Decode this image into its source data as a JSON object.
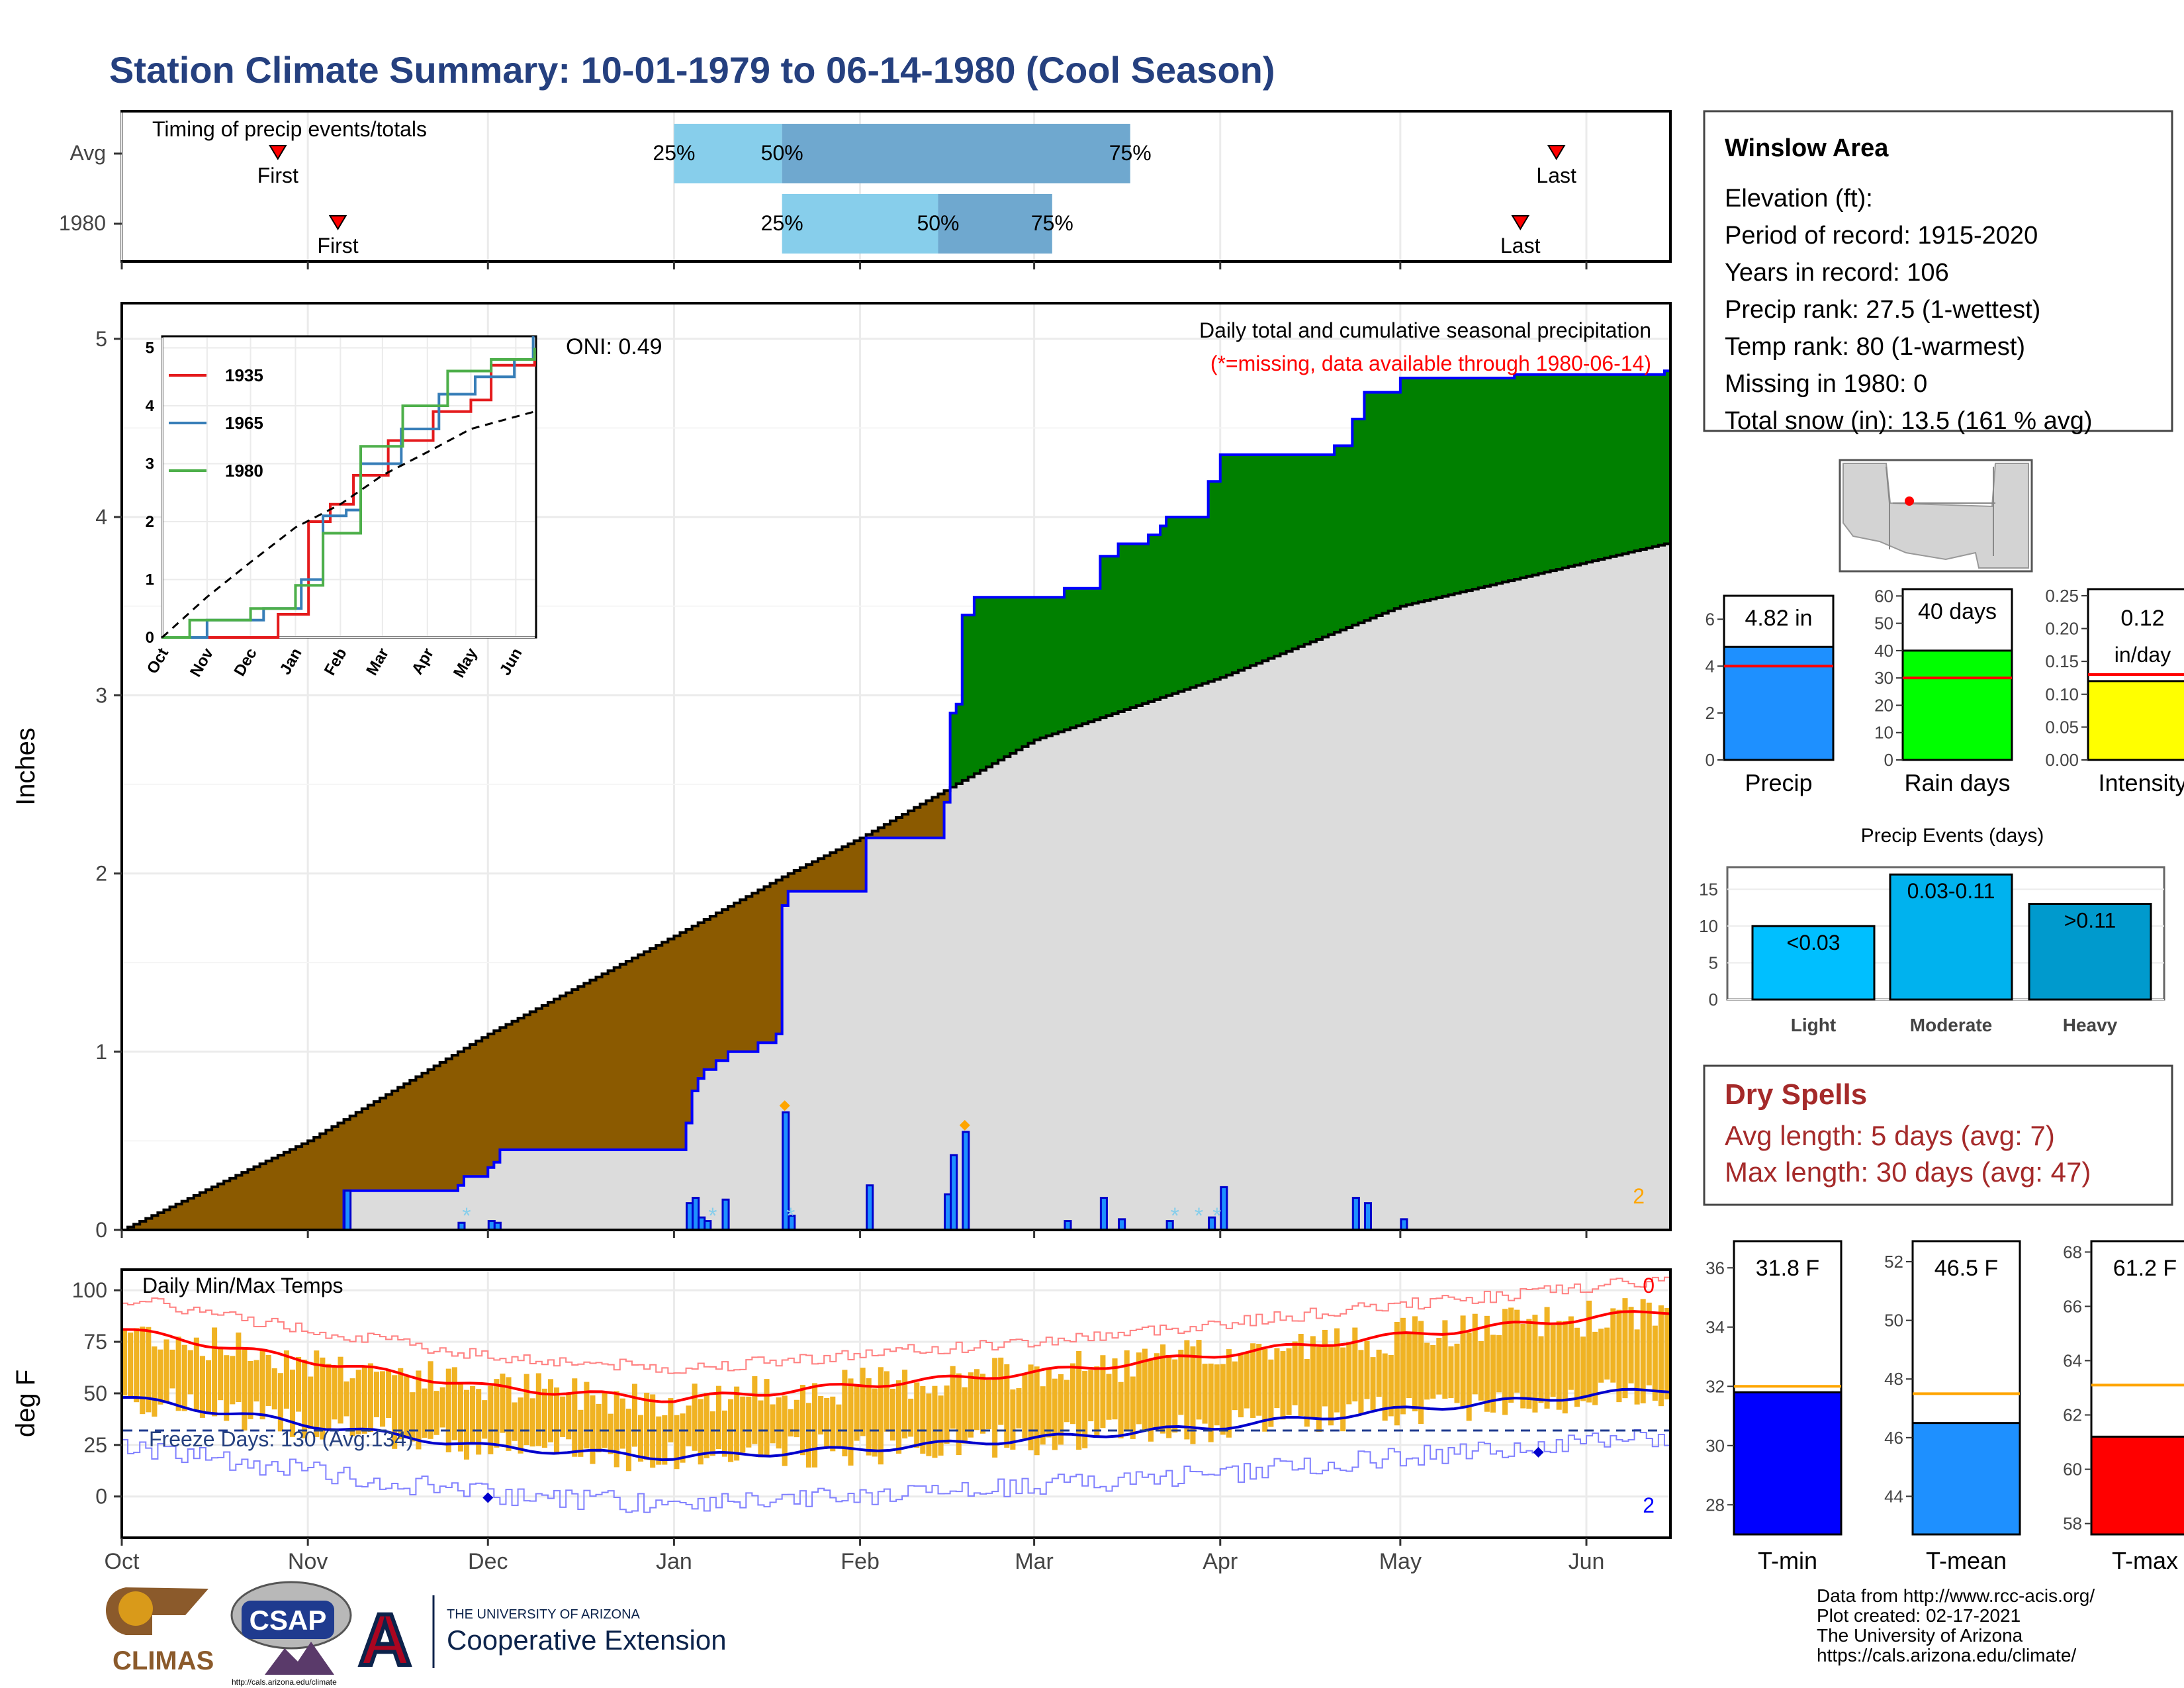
{
  "page": {
    "title": "Station Climate Summary: 10-01-1979 to 06-14-1980 (Cool Season)",
    "colors": {
      "title": "#25407f",
      "dry": "#a52a2a",
      "brown": "#8b5a00",
      "green": "#008000",
      "blue": "#0000ff",
      "grey": "#dcdcdc",
      "orange": "#ffa500"
    }
  },
  "timing": {
    "label": "Timing of precip events/totals",
    "rows": [
      {
        "name": "Avg",
        "first_label": "First",
        "last_label": "Last",
        "first_date": "1979-10-27",
        "last_date": "1980-05-27",
        "q25_date": "1980-01-01",
        "q50_date": "1980-01-19",
        "q75_date": "1980-03-17",
        "q25": "25%",
        "q50": "50%",
        "q75": "75%"
      },
      {
        "name": "1980",
        "first_label": "First",
        "last_label": "Last",
        "first_date": "1979-11-06",
        "last_date": "1980-05-21",
        "q25_date": "1980-01-19",
        "q50_date": "1980-02-14",
        "q75_date": "1980-03-04",
        "q25": "25%",
        "q50": "50%",
        "q75": "75%"
      }
    ]
  },
  "precip": {
    "ylabel": "Inches",
    "oni": "ONI: 0.49",
    "heading": "Daily total and cumulative seasonal precipitation",
    "subheading": "(*=missing, data available through 1980-06-14)",
    "corner_count": "2",
    "inset": {
      "legend": [
        "1935",
        "1965",
        "1980"
      ],
      "months": [
        "Oct",
        "Nov",
        "Dec",
        "Jan",
        "Feb",
        "Mar",
        "Apr",
        "May",
        "Jun"
      ],
      "yticks": [
        "0",
        "1",
        "2",
        "3",
        "4",
        "5"
      ]
    }
  },
  "temps": {
    "label": "Daily Min/Max Temps",
    "ylabel": "deg F",
    "freeze": "Freeze Days: 130 (Avg:134)",
    "count_top": "0",
    "count_bottom": "2"
  },
  "months": [
    "Oct",
    "Nov",
    "Dec",
    "Jan",
    "Feb",
    "Mar",
    "Apr",
    "May",
    "Jun"
  ],
  "station": {
    "name": "Winslow Area",
    "lines": [
      "Elevation (ft):",
      "Period of record: 1915-2020",
      "Years in record: 106",
      "Precip rank: 27.5 (1-wettest)",
      "Temp rank: 80 (1-warmest)",
      "Missing in 1980: 0",
      "Total snow (in): 13.5 (161 % avg)"
    ]
  },
  "small_bars": {
    "precip": {
      "label": "Precip",
      "value": 4.82,
      "value_text": "4.82 in",
      "avg": 4.0,
      "yticks": [
        "0",
        "2",
        "4",
        "6"
      ]
    },
    "rain_days": {
      "label": "Rain days",
      "value": 40,
      "value_text": "40 days",
      "avg": 30,
      "yticks": [
        "0",
        "10",
        "20",
        "30",
        "40",
        "50",
        "60"
      ]
    },
    "intensity": {
      "label": "Intensity",
      "value": 0.12,
      "value_text": "0.12",
      "unit": "in/day",
      "avg": 0.13,
      "yticks": [
        "0.00",
        "0.05",
        "0.10",
        "0.15",
        "0.20",
        "0.25"
      ]
    }
  },
  "events": {
    "title": "Precip Events (days)",
    "categories": [
      "Light",
      "Moderate",
      "Heavy"
    ],
    "labels": [
      "<0.03",
      "0.03-0.11",
      ">0.11"
    ],
    "values": [
      10,
      17,
      13
    ],
    "yticks": [
      "0",
      "5",
      "10",
      "15"
    ]
  },
  "dry": {
    "title": "Dry Spells",
    "avg": "Avg length: 5 days (avg: 7)",
    "max": "Max length: 30 days (avg: 47)"
  },
  "temp_bars": {
    "tmin": {
      "label": "T-min",
      "value_text": "31.8 F",
      "value": 31.8,
      "avg": 32.0,
      "yticks": [
        "28",
        "30",
        "32",
        "34",
        "36"
      ]
    },
    "tmean": {
      "label": "T-mean",
      "value_text": "46.5 F",
      "value": 46.5,
      "avg": 47.5,
      "yticks": [
        "44",
        "46",
        "48",
        "50",
        "52"
      ]
    },
    "tmax": {
      "label": "T-max",
      "value_text": "61.2 F",
      "value": 61.2,
      "avg": 63.1,
      "yticks": [
        "58",
        "60",
        "62",
        "64",
        "66",
        "68"
      ]
    }
  },
  "footer": {
    "lines": [
      "Data from http://www.rcc-acis.org/",
      "Plot created: 02-17-2021",
      "The University of Arizona",
      "https://cals.arizona.edu/climate/"
    ],
    "logo_climas": "CLIMAS",
    "logo_csap": "CSAP",
    "logo_csap_url": "http://cals.arizona.edu/climate",
    "uofa_small": "THE UNIVERSITY OF ARIZONA",
    "uofa_big": "Cooperative Extension"
  },
  "chart_data": {
    "type": "area",
    "title": "Station Climate Summary: 10-01-1979 to 06-14-1980 (Cool Season)",
    "ylabel": "Inches",
    "ylim": [
      0,
      5.2
    ],
    "x_range": [
      "1979-10-01",
      "1980-06-14"
    ],
    "series": [
      {
        "name": "1980",
        "points": [
          [
            "1979-10-01",
            0
          ],
          [
            "1979-11-06",
            0
          ],
          [
            "1979-11-07",
            0.22
          ],
          [
            "1979-11-26",
            0.25
          ],
          [
            "1979-11-27",
            0.3
          ],
          [
            "1979-12-01",
            0.35
          ],
          [
            "1979-12-02",
            0.38
          ],
          [
            "1979-12-03",
            0.45
          ],
          [
            "1980-01-02",
            0.45
          ],
          [
            "1980-01-03",
            0.6
          ],
          [
            "1980-01-04",
            0.78
          ],
          [
            "1980-01-05",
            0.85
          ],
          [
            "1980-01-06",
            0.9
          ],
          [
            "1980-01-08",
            0.95
          ],
          [
            "1980-01-10",
            1.0
          ],
          [
            "1980-01-15",
            1.05
          ],
          [
            "1980-01-18",
            1.1
          ],
          [
            "1980-01-19",
            1.82
          ],
          [
            "1980-01-20",
            1.9
          ],
          [
            "1980-02-01",
            1.9
          ],
          [
            "1980-02-02",
            2.2
          ],
          [
            "1980-02-14",
            2.2
          ],
          [
            "1980-02-15",
            2.4
          ],
          [
            "1980-02-16",
            2.9
          ],
          [
            "1980-02-17",
            2.95
          ],
          [
            "1980-02-18",
            3.45
          ],
          [
            "1980-02-20",
            3.55
          ],
          [
            "1980-03-05",
            3.55
          ],
          [
            "1980-03-06",
            3.6
          ],
          [
            "1980-03-12",
            3.78
          ],
          [
            "1980-03-15",
            3.85
          ],
          [
            "1980-03-20",
            3.9
          ],
          [
            "1980-03-22",
            3.95
          ],
          [
            "1980-03-23",
            4.0
          ],
          [
            "1980-03-30",
            4.2
          ],
          [
            "1980-04-01",
            4.35
          ],
          [
            "1980-04-20",
            4.4
          ],
          [
            "1980-04-23",
            4.55
          ],
          [
            "1980-04-25",
            4.7
          ],
          [
            "1980-05-01",
            4.78
          ],
          [
            "1980-05-20",
            4.8
          ],
          [
            "1980-06-14",
            4.82
          ]
        ]
      },
      {
        "name": "Average",
        "points": [
          [
            "1979-10-01",
            0
          ],
          [
            "1979-11-01",
            0.5
          ],
          [
            "1979-12-01",
            1.1
          ],
          [
            "1980-01-01",
            1.65
          ],
          [
            "1980-01-20",
            2.0
          ],
          [
            "1980-02-01",
            2.2
          ],
          [
            "1980-03-01",
            2.75
          ],
          [
            "1980-04-01",
            3.1
          ],
          [
            "1980-05-01",
            3.5
          ],
          [
            "1980-06-14",
            3.85
          ]
        ]
      }
    ],
    "daily_bars": [
      {
        "date": "1979-11-07",
        "value": 0.22
      },
      {
        "date": "1979-11-26",
        "value": 0.04
      },
      {
        "date": "1979-12-01",
        "value": 0.05
      },
      {
        "date": "1979-12-02",
        "value": 0.04
      },
      {
        "date": "1980-01-03",
        "value": 0.15
      },
      {
        "date": "1980-01-04",
        "value": 0.18
      },
      {
        "date": "1980-01-05",
        "value": 0.07
      },
      {
        "date": "1980-01-06",
        "value": 0.05
      },
      {
        "date": "1980-01-09",
        "value": 0.17
      },
      {
        "date": "1980-01-19",
        "value": 0.66
      },
      {
        "date": "1980-01-20",
        "value": 0.08
      },
      {
        "date": "1980-02-02",
        "value": 0.25
      },
      {
        "date": "1980-02-15",
        "value": 0.2
      },
      {
        "date": "1980-02-16",
        "value": 0.42
      },
      {
        "date": "1980-02-18",
        "value": 0.55
      },
      {
        "date": "1980-03-06",
        "value": 0.05
      },
      {
        "date": "1980-03-12",
        "value": 0.18
      },
      {
        "date": "1980-03-15",
        "value": 0.06
      },
      {
        "date": "1980-03-23",
        "value": 0.05
      },
      {
        "date": "1980-03-30",
        "value": 0.07
      },
      {
        "date": "1980-04-01",
        "value": 0.24
      },
      {
        "date": "1980-04-23",
        "value": 0.18
      },
      {
        "date": "1980-04-25",
        "value": 0.15
      },
      {
        "date": "1980-05-01",
        "value": 0.06
      }
    ],
    "inset": {
      "ylim": [
        0,
        5.2
      ],
      "series": [
        {
          "name": "1935",
          "points": [
            [
              "1935-10-01",
              0
            ],
            [
              "1935-11-20",
              0
            ],
            [
              "1935-12-20",
              0.4
            ],
            [
              "1936-01-10",
              2.0
            ],
            [
              "1936-01-25",
              2.3
            ],
            [
              "1936-02-10",
              2.8
            ],
            [
              "1936-03-05",
              3.4
            ],
            [
              "1936-04-05",
              3.9
            ],
            [
              "1936-05-01",
              4.1
            ],
            [
              "1936-05-15",
              4.7
            ],
            [
              "1936-06-14",
              4.9
            ]
          ]
        },
        {
          "name": "1965",
          "points": [
            [
              "1965-10-01",
              0
            ],
            [
              "1965-11-01",
              0.3
            ],
            [
              "1965-12-10",
              0.5
            ],
            [
              "1966-01-05",
              1.0
            ],
            [
              "1966-01-20",
              2.1
            ],
            [
              "1966-02-05",
              2.2
            ],
            [
              "1966-02-15",
              3.0
            ],
            [
              "1966-03-15",
              3.6
            ],
            [
              "1966-04-10",
              4.2
            ],
            [
              "1966-05-05",
              4.5
            ],
            [
              "1966-06-01",
              4.8
            ],
            [
              "1966-06-14",
              5.2
            ]
          ]
        },
        {
          "name": "1980",
          "points": [
            [
              "1979-10-01",
              0
            ],
            [
              "1979-10-20",
              0.3
            ],
            [
              "1979-12-01",
              0.5
            ],
            [
              "1980-01-01",
              0.9
            ],
            [
              "1980-01-20",
              1.8
            ],
            [
              "1980-02-15",
              3.3
            ],
            [
              "1980-03-15",
              4.0
            ],
            [
              "1980-04-15",
              4.6
            ],
            [
              "1980-05-15",
              4.8
            ],
            [
              "1980-06-14",
              5.0
            ]
          ]
        },
        {
          "name": "Average",
          "points": [
            [
              "1979-10-01",
              0
            ],
            [
              "1979-11-01",
              0.7
            ],
            [
              "1979-12-01",
              1.3
            ],
            [
              "1980-01-01",
              1.9
            ],
            [
              "1980-02-01",
              2.3
            ],
            [
              "1980-03-01",
              2.8
            ],
            [
              "1980-04-01",
              3.2
            ],
            [
              "1980-05-01",
              3.6
            ],
            [
              "1980-06-14",
              3.9
            ]
          ]
        }
      ]
    },
    "temperature": {
      "ylabel": "deg F",
      "ylim": [
        -20,
        110
      ],
      "yticks": [
        0,
        25,
        50,
        75,
        100
      ],
      "avg_max": [
        [
          "1979-10-01",
          81
        ],
        [
          "1979-11-01",
          66
        ],
        [
          "1979-12-01",
          53
        ],
        [
          "1980-01-01",
          47
        ],
        [
          "1980-02-01",
          54
        ],
        [
          "1980-03-01",
          60
        ],
        [
          "1980-04-01",
          69
        ],
        [
          "1980-05-01",
          78
        ],
        [
          "1980-06-14",
          90
        ]
      ],
      "avg_min": [
        [
          "1979-10-01",
          48
        ],
        [
          "1979-11-01",
          35
        ],
        [
          "1979-12-01",
          24
        ],
        [
          "1980-01-01",
          19
        ],
        [
          "1980-02-01",
          23
        ],
        [
          "1980-03-01",
          28
        ],
        [
          "1980-04-01",
          34
        ],
        [
          "1980-05-01",
          42
        ],
        [
          "1980-06-14",
          52
        ]
      ],
      "freeze_line": 32
    }
  }
}
